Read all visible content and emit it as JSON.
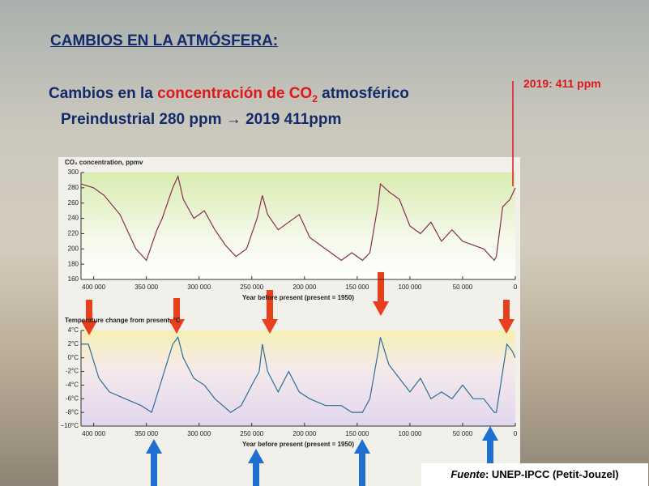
{
  "slide": {
    "title": "CAMBIOS EN LA ATMÓSFERA:",
    "line1": [
      "Cambios en la ",
      "concentración de CO",
      "2",
      " atmosférico"
    ],
    "line2": "Preindustrial 280 ppm → 2019  411ppm",
    "annotation": "2019: 411 ppm",
    "footer": [
      "Fuente",
      ": UNEP-IPCC (Petit-Jouzel)"
    ]
  },
  "chart_data": [
    {
      "type": "line",
      "title": "CO₂ concentration, ppmv",
      "x_label": "Year before present (present = 1950)",
      "x": [
        412000,
        400000,
        390000,
        375000,
        360000,
        350000,
        340000,
        335000,
        325000,
        320000,
        315000,
        305000,
        295000,
        285000,
        275000,
        265000,
        255000,
        245000,
        240000,
        235000,
        225000,
        215000,
        205000,
        195000,
        185000,
        175000,
        165000,
        155000,
        145000,
        138000,
        130000,
        128000,
        120000,
        110000,
        100000,
        90000,
        80000,
        70000,
        60000,
        50000,
        40000,
        30000,
        20000,
        18000,
        12000,
        5000,
        0
      ],
      "values": [
        285,
        280,
        270,
        245,
        200,
        185,
        225,
        240,
        280,
        295,
        265,
        240,
        250,
        225,
        205,
        190,
        200,
        240,
        270,
        245,
        225,
        235,
        245,
        215,
        205,
        195,
        185,
        195,
        185,
        195,
        260,
        285,
        275,
        265,
        230,
        220,
        235,
        210,
        225,
        210,
        205,
        200,
        185,
        190,
        255,
        265,
        280
      ],
      "color": "#8a2c55",
      "xlim": [
        412000,
        0
      ],
      "xticks": [
        {
          "value": 400000,
          "label": "400 000"
        },
        {
          "value": 350000,
          "label": "350 000"
        },
        {
          "value": 300000,
          "label": "300 000"
        },
        {
          "value": 250000,
          "label": "250 000"
        },
        {
          "value": 200000,
          "label": "200 000"
        },
        {
          "value": 150000,
          "label": "150 000"
        },
        {
          "value": 100000,
          "label": "100 000"
        },
        {
          "value": 50000,
          "label": "50 000"
        },
        0
      ],
      "ylim": [
        160,
        300
      ],
      "yticks": [
        160,
        180,
        200,
        220,
        240,
        260,
        280,
        300
      ]
    },
    {
      "type": "line",
      "title": "Temperature change from present, °C",
      "x_label": "Year before present (present = 1950)",
      "x": [
        412000,
        405000,
        395000,
        385000,
        370000,
        355000,
        345000,
        335000,
        325000,
        320000,
        315000,
        305000,
        295000,
        285000,
        270000,
        260000,
        250000,
        243000,
        240000,
        235000,
        225000,
        215000,
        205000,
        195000,
        180000,
        165000,
        155000,
        145000,
        138000,
        130000,
        128000,
        120000,
        110000,
        100000,
        90000,
        80000,
        70000,
        60000,
        50000,
        40000,
        30000,
        20000,
        18000,
        12000,
        8000,
        3000,
        0
      ],
      "values": [
        2,
        2,
        -3,
        -5,
        -6,
        -7,
        -8,
        -3,
        2,
        3,
        0,
        -3,
        -4,
        -6,
        -8,
        -7,
        -4,
        -2,
        2,
        -2,
        -5,
        -2,
        -5,
        -6,
        -7,
        -7,
        -8,
        -8,
        -6,
        1,
        3,
        -1,
        -3,
        -5,
        -3,
        -6,
        -5,
        -6,
        -4,
        -6,
        -6,
        -8,
        -8,
        -2,
        2,
        1,
        0
      ],
      "color": "#2c6e99",
      "xlim": [
        412000,
        0
      ],
      "xticks": [
        {
          "value": 400000,
          "label": "400 000"
        },
        {
          "value": 350000,
          "label": "350 000"
        },
        {
          "value": 300000,
          "label": "300 000"
        },
        {
          "value": 250000,
          "label": "250 000"
        },
        {
          "value": 200000,
          "label": "200 000"
        },
        {
          "value": 150000,
          "label": "150 000"
        },
        {
          "value": 100000,
          "label": "100 000"
        },
        {
          "value": 50000,
          "label": "50 000"
        },
        0
      ],
      "ylim": [
        -10,
        4
      ],
      "yticks": [
        {
          "value": -10,
          "label": "−10°C"
        },
        {
          "value": -8,
          "label": "-8°C"
        },
        {
          "value": -6,
          "label": "-6°C"
        },
        {
          "value": -4,
          "label": "-4°C"
        },
        {
          "value": -2,
          "label": "-2°C"
        },
        {
          "value": 0,
          "label": "0°C"
        },
        {
          "value": 2,
          "label": "2°C"
        },
        {
          "value": 4,
          "label": "4°C"
        }
      ]
    }
  ]
}
